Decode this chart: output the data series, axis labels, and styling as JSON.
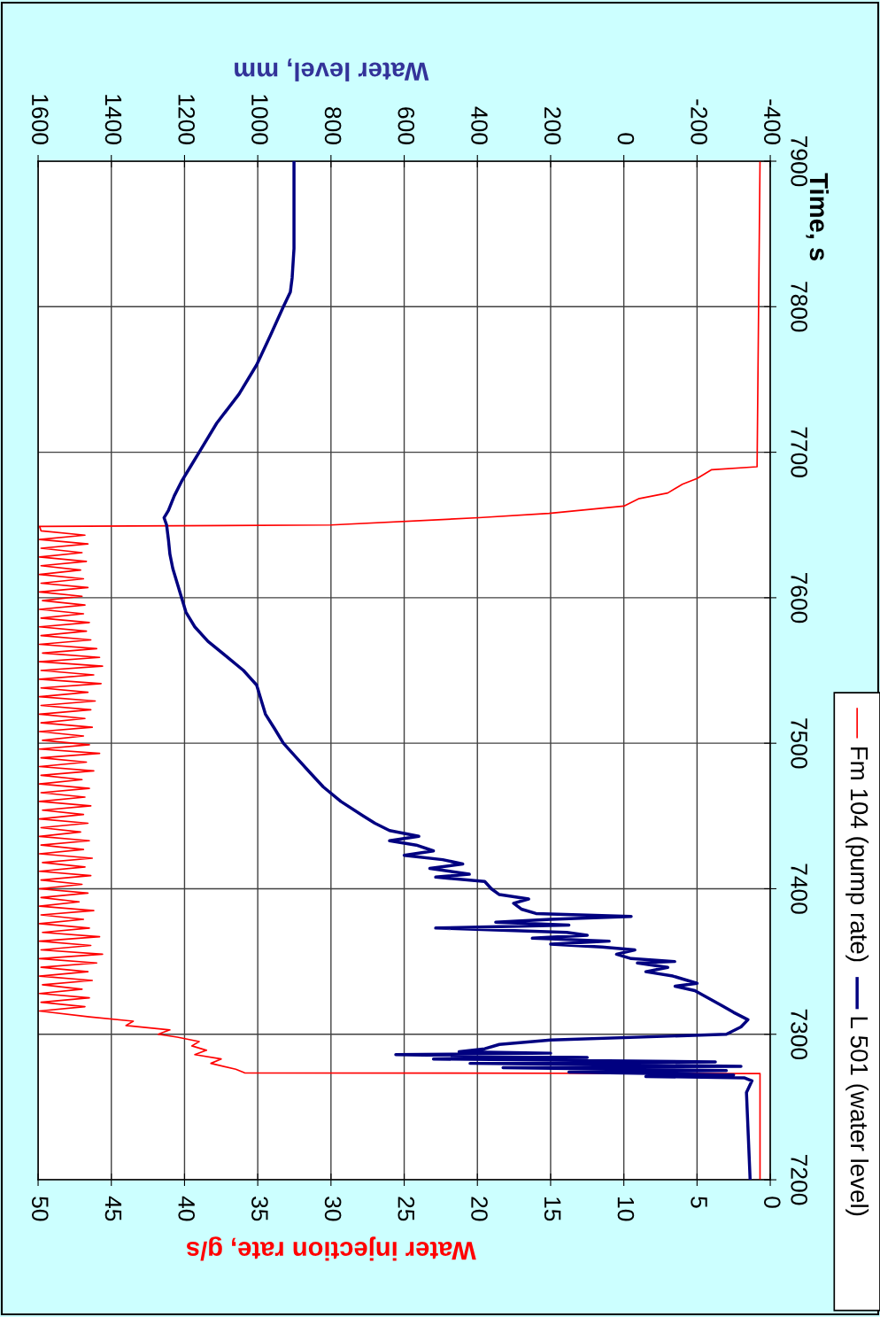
{
  "chart_data": {
    "type": "line",
    "xlabel": "Water injection rate, g/s",
    "x2label": "Water level, mm",
    "ylabel": "Time, s",
    "xlim": [
      50,
      0
    ],
    "xticks": [
      50,
      45,
      40,
      35,
      30,
      25,
      20,
      15,
      10,
      5,
      0
    ],
    "x2lim": [
      1600,
      -400
    ],
    "x2ticks": [
      1600,
      1400,
      1200,
      1000,
      800,
      600,
      400,
      200,
      0,
      -200,
      -400
    ],
    "ylim": [
      7200,
      7900
    ],
    "yticks": [
      7200,
      7300,
      7400,
      7500,
      7600,
      7700,
      7800,
      7900
    ],
    "grid": true,
    "legend": "right",
    "series": [
      {
        "name": "Fm 104 (pump rate)",
        "color": "#ff0000",
        "values": [
          7200,
          7273,
          7273.5,
          7276,
          7280,
          7283,
          7286,
          7289,
          7292,
          7295,
          7298,
          7300,
          7303,
          7306,
          7309,
          7312,
          7316,
          7319,
          7322,
          7325,
          7328,
          7331,
          7334,
          7337,
          7340,
          7343,
          7346,
          7349,
          7352,
          7355,
          7358,
          7361,
          7364,
          7367,
          7370,
          7373,
          7376,
          7379,
          7382,
          7385,
          7388,
          7391,
          7394,
          7397,
          7400,
          7403,
          7406,
          7409,
          7412,
          7415,
          7418,
          7421,
          7424,
          7427,
          7430,
          7433,
          7436,
          7439,
          7442,
          7445,
          7448,
          7451,
          7454,
          7457,
          7460,
          7463,
          7466,
          7469,
          7472,
          7475,
          7478,
          7481,
          7484,
          7487,
          7490,
          7493,
          7496,
          7499,
          7502,
          7505,
          7508,
          7511,
          7514,
          7517,
          7520,
          7523,
          7526,
          7529,
          7532,
          7535,
          7538,
          7541,
          7544,
          7547,
          7550,
          7553,
          7556,
          7559,
          7562,
          7565,
          7568,
          7571,
          7574,
          7577,
          7580,
          7583,
          7586,
          7589,
          7592,
          7595,
          7598,
          7601,
          7604,
          7607,
          7610,
          7613,
          7616,
          7619,
          7622,
          7625,
          7628,
          7631,
          7634,
          7637,
          7640,
          7643,
          7646,
          7649,
          7650,
          7655,
          7658,
          7663,
          7668,
          7672,
          7678,
          7682,
          7688,
          7690,
          7900
        ],
        "x": [
          0.7,
          0.7,
          35.9,
          36.5,
          38.2,
          37.5,
          39.3,
          38.5,
          39.5,
          39.0,
          40.5,
          41.8,
          41.0,
          44.0,
          43.5,
          46.5,
          49.9,
          46.8,
          49.8,
          46.5,
          49.9,
          47.0,
          49.7,
          46.3,
          49.9,
          46.6,
          49.8,
          46.0,
          49.9,
          45.6,
          49.8,
          46.4,
          49.9,
          45.8,
          49.7,
          46.5,
          49.9,
          46.9,
          49.8,
          46.2,
          49.9,
          47.2,
          49.8,
          46.6,
          49.9,
          47.0,
          49.8,
          46.4,
          49.9,
          46.8,
          49.7,
          46.3,
          49.9,
          46.9,
          49.8,
          46.5,
          49.9,
          47.1,
          49.8,
          46.6,
          49.9,
          46.9,
          49.7,
          46.4,
          49.9,
          46.8,
          49.8,
          46.5,
          49.9,
          47.0,
          49.8,
          46.2,
          49.9,
          46.7,
          49.8,
          45.8,
          49.9,
          46.5,
          49.7,
          46.9,
          49.9,
          46.3,
          49.8,
          46.8,
          49.9,
          46.4,
          49.8,
          46.1,
          49.9,
          46.6,
          49.8,
          45.7,
          49.9,
          46.2,
          49.8,
          45.6,
          49.9,
          45.8,
          49.7,
          46.0,
          49.9,
          46.4,
          49.8,
          46.7,
          49.9,
          46.5,
          49.8,
          46.9,
          49.9,
          46.8,
          49.7,
          47.0,
          49.9,
          46.6,
          49.8,
          46.9,
          49.9,
          47.1,
          49.8,
          46.7,
          49.9,
          47.0,
          49.8,
          46.6,
          49.9,
          46.8,
          49.8,
          49.9,
          30.0,
          19.9,
          15.1,
          10.0,
          9.0,
          7.0,
          6.0,
          5.0,
          4.0,
          0.9,
          0.7
        ]
      },
      {
        "name": "L 501 (water level)",
        "color": "#000080",
        "axis": "x2",
        "values": [
          7200,
          7230,
          7260,
          7268,
          7270,
          7271,
          7272,
          7274,
          7275,
          7277,
          7278,
          7280,
          7281,
          7283,
          7284,
          7286,
          7287,
          7288,
          7290,
          7293,
          7296,
          7300,
          7305,
          7310,
          7315,
          7320,
          7325,
          7330,
          7333,
          7335,
          7340,
          7343,
          7346,
          7349,
          7350,
          7352,
          7355,
          7358,
          7360,
          7362,
          7364,
          7366,
          7368,
          7370,
          7373,
          7375,
          7377,
          7379,
          7381,
          7383,
          7386,
          7390,
          7393,
          7396,
          7400,
          7405,
          7408,
          7410,
          7414,
          7417,
          7420,
          7423,
          7426,
          7430,
          7433,
          7436,
          7440,
          7445,
          7450,
          7460,
          7470,
          7480,
          7490,
          7500,
          7510,
          7520,
          7530,
          7540,
          7550,
          7560,
          7570,
          7580,
          7590,
          7600,
          7610,
          7620,
          7630,
          7640,
          7650,
          7655,
          7660,
          7670,
          7680,
          7690,
          7700,
          7720,
          7740,
          7760,
          7780,
          7800,
          7810,
          7820,
          7840,
          7900
        ],
        "x": [
          -345,
          -340,
          -335,
          -350,
          -330,
          -60,
          -300,
          150,
          -280,
          330,
          -320,
          420,
          -250,
          520,
          100,
          623,
          200,
          450,
          380,
          340,
          200,
          -280,
          -320,
          -339,
          -300,
          -266,
          -230,
          -194,
          -140,
          -200,
          -134,
          -60,
          -120,
          -37,
          -139,
          -20,
          20,
          -30,
          60,
          200,
          40,
          250,
          100,
          156,
          514,
          150,
          350,
          200,
          -20,
          240,
          280,
          301,
          260,
          340,
          362,
          380,
          514,
          422,
          530,
          440,
          495,
          600,
          520,
          567,
          640,
          560,
          640,
          680,
          712,
          773,
          821,
          858,
          894,
          930,
          954,
          979,
          991,
          1003,
          1039,
          1087,
          1136,
          1172,
          1196,
          1208,
          1220,
          1232,
          1240,
          1244,
          1249,
          1256,
          1244,
          1228,
          1208,
          1184,
          1160,
          1112,
          1051,
          1003,
          966,
          930,
          911,
          906,
          901,
          901
        ]
      }
    ]
  }
}
